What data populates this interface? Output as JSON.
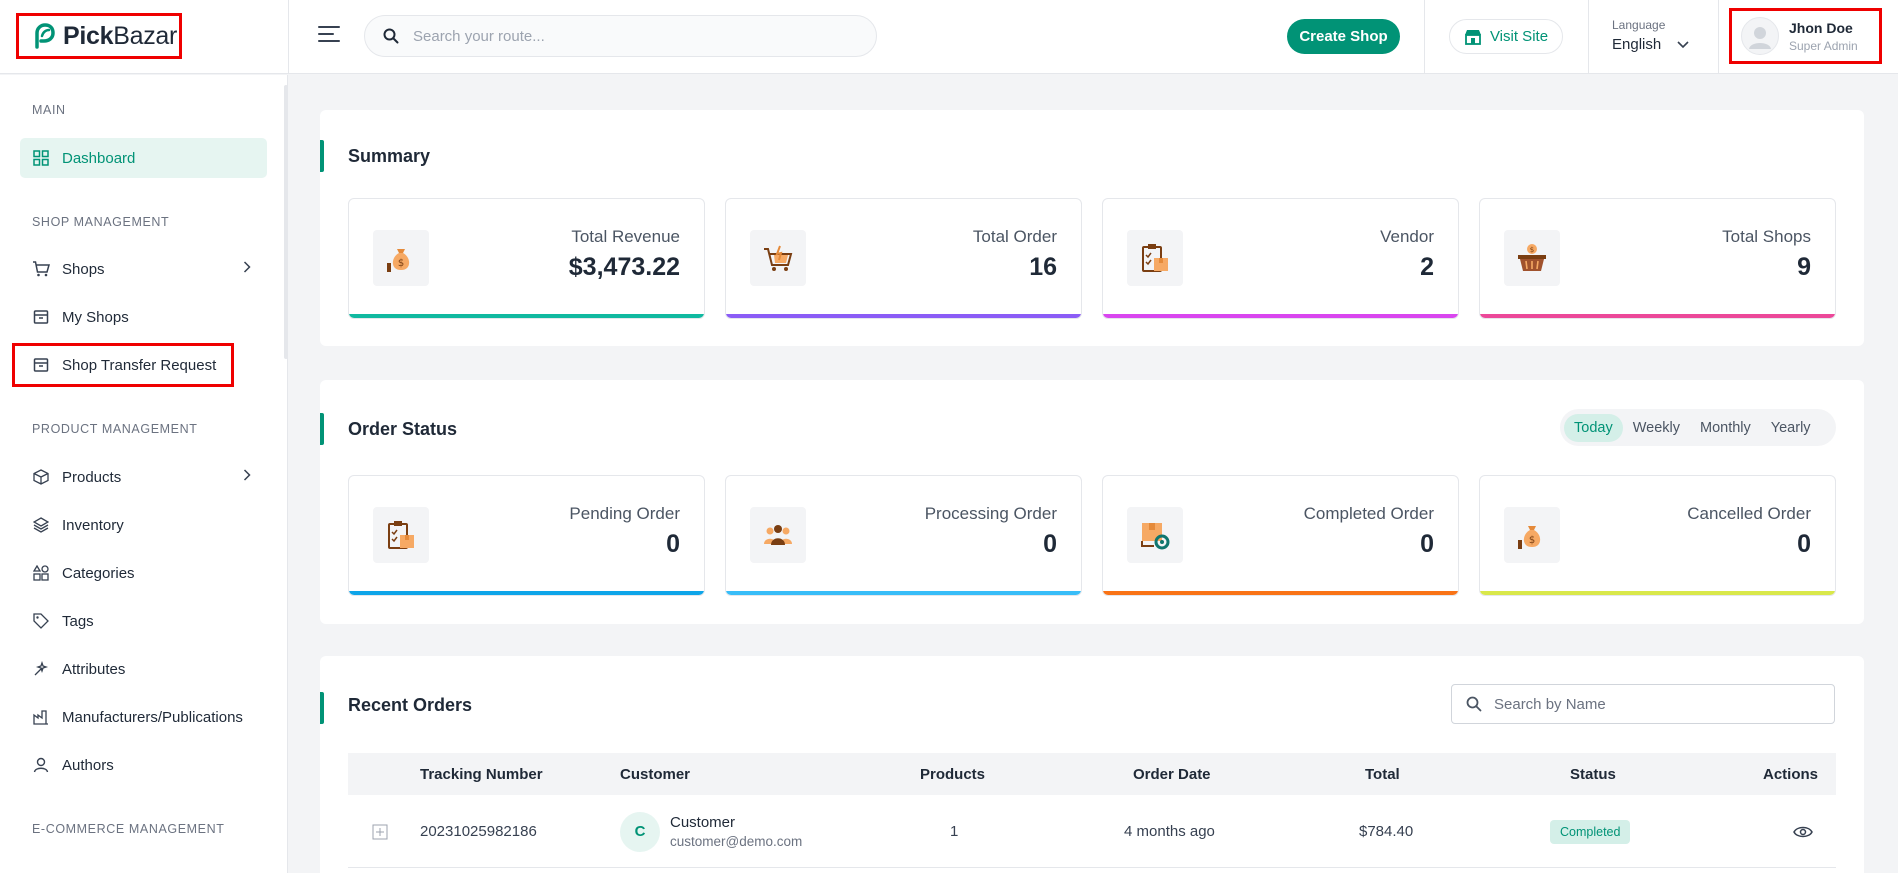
{
  "brand": {
    "name_bold": "Pick",
    "name_light": "Bazar"
  },
  "header": {
    "search_placeholder": "Search your route...",
    "create_shop": "Create Shop",
    "visit_site": "Visit Site",
    "language_label": "Language",
    "language_value": "English",
    "user_name": "Jhon Doe",
    "user_role": "Super Admin"
  },
  "sidebar": {
    "sections": [
      "MAIN",
      "SHOP MANAGEMENT",
      "PRODUCT MANAGEMENT",
      "E-COMMERCE MANAGEMENT"
    ],
    "items": [
      {
        "label": "Dashboard",
        "icon": "dashboard-icon"
      },
      {
        "label": "Shops",
        "icon": "cart-icon"
      },
      {
        "label": "My Shops",
        "icon": "store-icon"
      },
      {
        "label": "Shop Transfer Request",
        "icon": "transfer-icon"
      },
      {
        "label": "Products",
        "icon": "box-icon"
      },
      {
        "label": "Inventory",
        "icon": "layers-icon"
      },
      {
        "label": "Categories",
        "icon": "categories-icon"
      },
      {
        "label": "Tags",
        "icon": "tag-icon"
      },
      {
        "label": "Attributes",
        "icon": "attributes-icon"
      },
      {
        "label": "Manufacturers/Publications",
        "icon": "factory-icon"
      },
      {
        "label": "Authors",
        "icon": "user-icon"
      }
    ]
  },
  "summary": {
    "title": "Summary",
    "stats": [
      {
        "label": "Total Revenue",
        "value": "$3,473.22",
        "color": "#10b9a0"
      },
      {
        "label": "Total Order",
        "value": "16",
        "color": "#8b5cf6"
      },
      {
        "label": "Vendor",
        "value": "2",
        "color": "#d946ef"
      },
      {
        "label": "Total Shops",
        "value": "9",
        "color": "#ec4899"
      }
    ]
  },
  "order_status": {
    "title": "Order Status",
    "periods": [
      "Today",
      "Weekly",
      "Monthly",
      "Yearly"
    ],
    "stats": [
      {
        "label": "Pending Order",
        "value": "0",
        "color": "#0ea5e9"
      },
      {
        "label": "Processing Order",
        "value": "0",
        "color": "#38bdf8"
      },
      {
        "label": "Completed Order",
        "value": "0",
        "color": "#f97316"
      },
      {
        "label": "Cancelled Order",
        "value": "0",
        "color": "#d9e84a"
      }
    ]
  },
  "recent_orders": {
    "title": "Recent Orders",
    "search_placeholder": "Search by Name",
    "columns": [
      "Tracking Number",
      "Customer",
      "Products",
      "Order Date",
      "Total",
      "Status",
      "Actions"
    ],
    "rows": [
      {
        "tracking": "20231025982186",
        "avatar_letter": "C",
        "customer_name": "Customer",
        "customer_email": "customer@demo.com",
        "products": "1",
        "date": "4 months ago",
        "total": "$784.40",
        "status": "Completed"
      }
    ]
  }
}
